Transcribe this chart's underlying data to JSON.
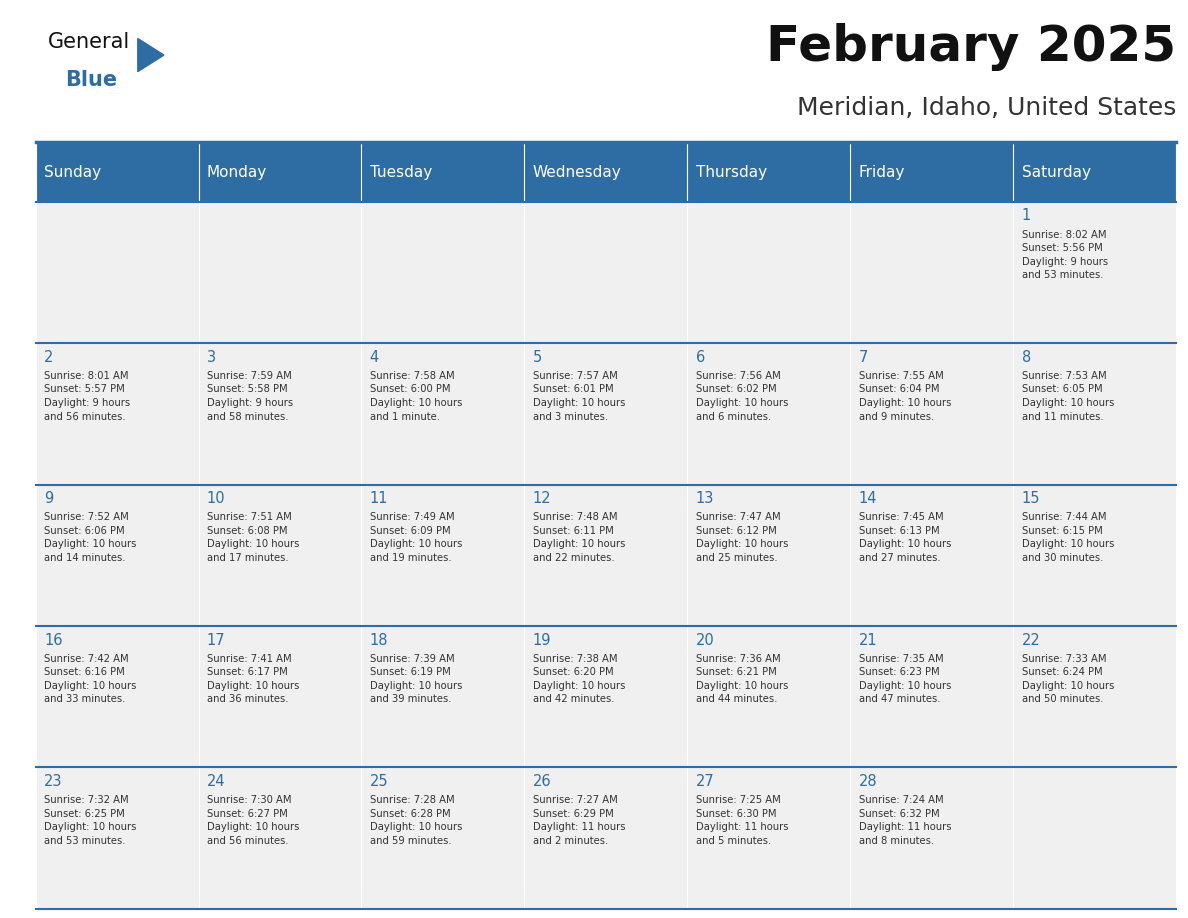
{
  "title": "February 2025",
  "subtitle": "Meridian, Idaho, United States",
  "header_bg_color": "#2E6DA4",
  "header_text_color": "#FFFFFF",
  "cell_bg_color": "#F0F0F0",
  "cell_text_color": "#333333",
  "day_num_color": "#2E6DA4",
  "border_color": "#2E6DA4",
  "days_of_week": [
    "Sunday",
    "Monday",
    "Tuesday",
    "Wednesday",
    "Thursday",
    "Friday",
    "Saturday"
  ],
  "weeks": [
    [
      {
        "day": "",
        "info": ""
      },
      {
        "day": "",
        "info": ""
      },
      {
        "day": "",
        "info": ""
      },
      {
        "day": "",
        "info": ""
      },
      {
        "day": "",
        "info": ""
      },
      {
        "day": "",
        "info": ""
      },
      {
        "day": "1",
        "info": "Sunrise: 8:02 AM\nSunset: 5:56 PM\nDaylight: 9 hours\nand 53 minutes."
      }
    ],
    [
      {
        "day": "2",
        "info": "Sunrise: 8:01 AM\nSunset: 5:57 PM\nDaylight: 9 hours\nand 56 minutes."
      },
      {
        "day": "3",
        "info": "Sunrise: 7:59 AM\nSunset: 5:58 PM\nDaylight: 9 hours\nand 58 minutes."
      },
      {
        "day": "4",
        "info": "Sunrise: 7:58 AM\nSunset: 6:00 PM\nDaylight: 10 hours\nand 1 minute."
      },
      {
        "day": "5",
        "info": "Sunrise: 7:57 AM\nSunset: 6:01 PM\nDaylight: 10 hours\nand 3 minutes."
      },
      {
        "day": "6",
        "info": "Sunrise: 7:56 AM\nSunset: 6:02 PM\nDaylight: 10 hours\nand 6 minutes."
      },
      {
        "day": "7",
        "info": "Sunrise: 7:55 AM\nSunset: 6:04 PM\nDaylight: 10 hours\nand 9 minutes."
      },
      {
        "day": "8",
        "info": "Sunrise: 7:53 AM\nSunset: 6:05 PM\nDaylight: 10 hours\nand 11 minutes."
      }
    ],
    [
      {
        "day": "9",
        "info": "Sunrise: 7:52 AM\nSunset: 6:06 PM\nDaylight: 10 hours\nand 14 minutes."
      },
      {
        "day": "10",
        "info": "Sunrise: 7:51 AM\nSunset: 6:08 PM\nDaylight: 10 hours\nand 17 minutes."
      },
      {
        "day": "11",
        "info": "Sunrise: 7:49 AM\nSunset: 6:09 PM\nDaylight: 10 hours\nand 19 minutes."
      },
      {
        "day": "12",
        "info": "Sunrise: 7:48 AM\nSunset: 6:11 PM\nDaylight: 10 hours\nand 22 minutes."
      },
      {
        "day": "13",
        "info": "Sunrise: 7:47 AM\nSunset: 6:12 PM\nDaylight: 10 hours\nand 25 minutes."
      },
      {
        "day": "14",
        "info": "Sunrise: 7:45 AM\nSunset: 6:13 PM\nDaylight: 10 hours\nand 27 minutes."
      },
      {
        "day": "15",
        "info": "Sunrise: 7:44 AM\nSunset: 6:15 PM\nDaylight: 10 hours\nand 30 minutes."
      }
    ],
    [
      {
        "day": "16",
        "info": "Sunrise: 7:42 AM\nSunset: 6:16 PM\nDaylight: 10 hours\nand 33 minutes."
      },
      {
        "day": "17",
        "info": "Sunrise: 7:41 AM\nSunset: 6:17 PM\nDaylight: 10 hours\nand 36 minutes."
      },
      {
        "day": "18",
        "info": "Sunrise: 7:39 AM\nSunset: 6:19 PM\nDaylight: 10 hours\nand 39 minutes."
      },
      {
        "day": "19",
        "info": "Sunrise: 7:38 AM\nSunset: 6:20 PM\nDaylight: 10 hours\nand 42 minutes."
      },
      {
        "day": "20",
        "info": "Sunrise: 7:36 AM\nSunset: 6:21 PM\nDaylight: 10 hours\nand 44 minutes."
      },
      {
        "day": "21",
        "info": "Sunrise: 7:35 AM\nSunset: 6:23 PM\nDaylight: 10 hours\nand 47 minutes."
      },
      {
        "day": "22",
        "info": "Sunrise: 7:33 AM\nSunset: 6:24 PM\nDaylight: 10 hours\nand 50 minutes."
      }
    ],
    [
      {
        "day": "23",
        "info": "Sunrise: 7:32 AM\nSunset: 6:25 PM\nDaylight: 10 hours\nand 53 minutes."
      },
      {
        "day": "24",
        "info": "Sunrise: 7:30 AM\nSunset: 6:27 PM\nDaylight: 10 hours\nand 56 minutes."
      },
      {
        "day": "25",
        "info": "Sunrise: 7:28 AM\nSunset: 6:28 PM\nDaylight: 10 hours\nand 59 minutes."
      },
      {
        "day": "26",
        "info": "Sunrise: 7:27 AM\nSunset: 6:29 PM\nDaylight: 11 hours\nand 2 minutes."
      },
      {
        "day": "27",
        "info": "Sunrise: 7:25 AM\nSunset: 6:30 PM\nDaylight: 11 hours\nand 5 minutes."
      },
      {
        "day": "28",
        "info": "Sunrise: 7:24 AM\nSunset: 6:32 PM\nDaylight: 11 hours\nand 8 minutes."
      },
      {
        "day": "",
        "info": ""
      }
    ]
  ]
}
